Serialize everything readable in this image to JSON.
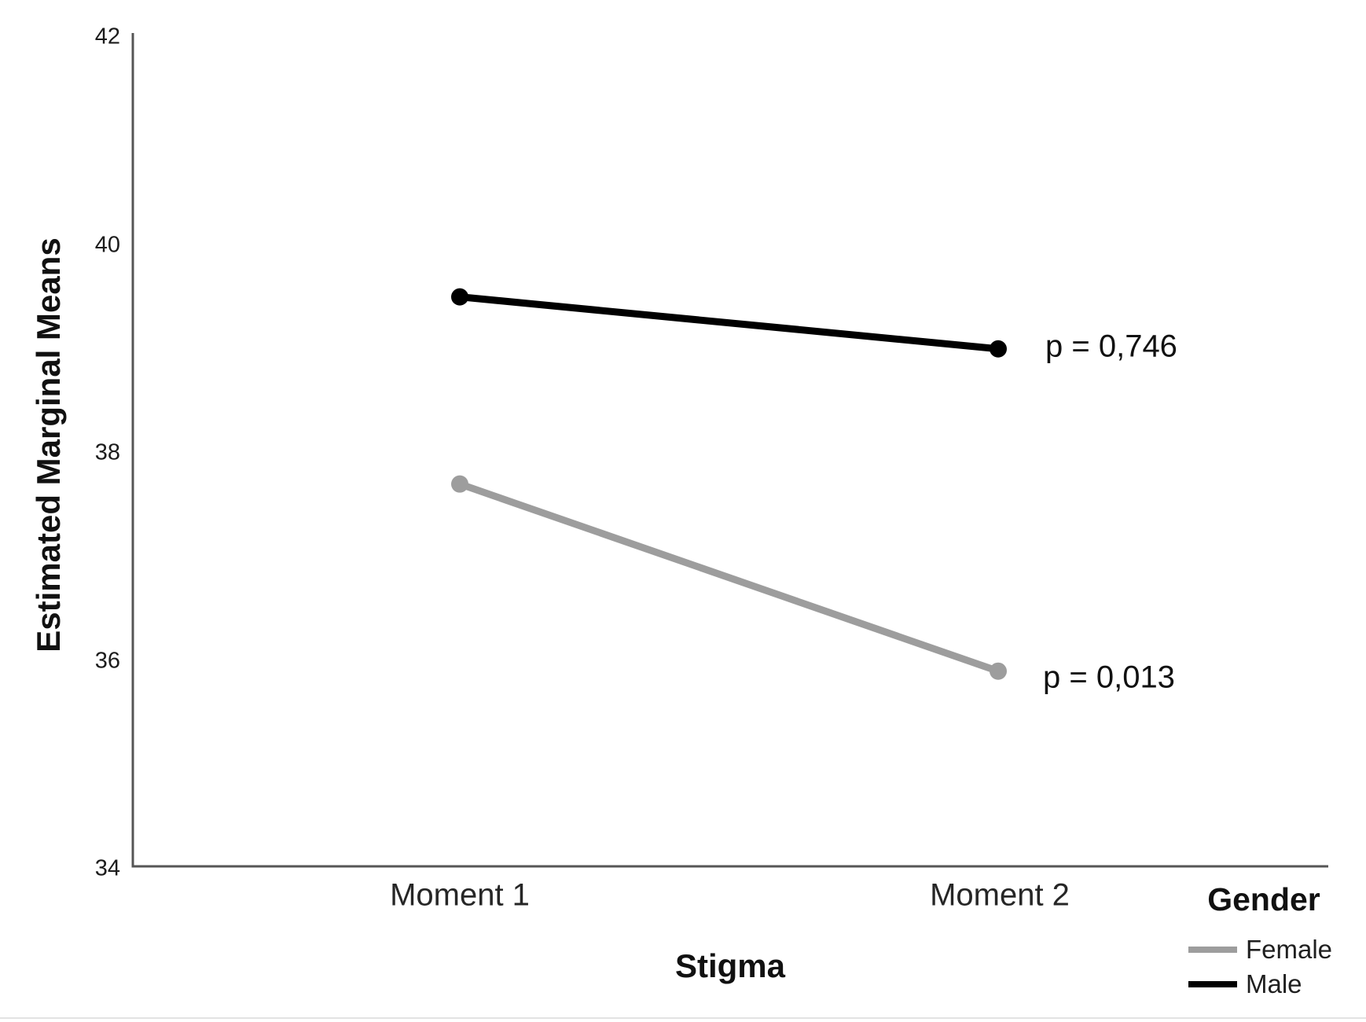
{
  "chart_data": {
    "type": "line",
    "title": "",
    "xlabel": "Stigma",
    "ylabel": "Estimated Marginal Means",
    "categories": [
      "Moment 1",
      "Moment 2"
    ],
    "series": [
      {
        "name": "Female",
        "values": [
          37.7,
          35.9
        ],
        "color": "#9d9d9d",
        "p_label": "p = 0,013"
      },
      {
        "name": "Male",
        "values": [
          39.5,
          39.0
        ],
        "color": "#000000",
        "p_label": "p = 0,746"
      }
    ],
    "ylim": [
      34,
      42
    ],
    "yticks": [
      42,
      40,
      38,
      36,
      34
    ],
    "grid": false,
    "axis_color": "#555555",
    "legend_title": "Gender",
    "legend_position": "bottom-right-outside"
  }
}
